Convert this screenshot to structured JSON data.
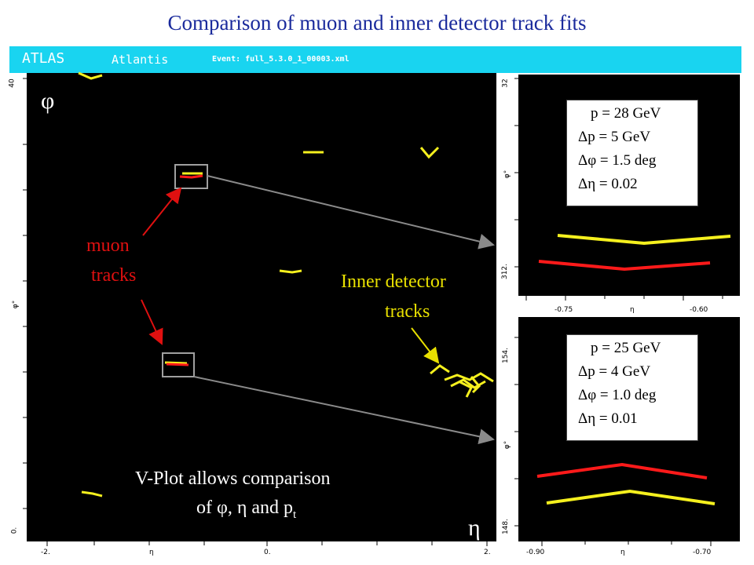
{
  "slide": {
    "title": "Comparison of muon and inner detector track fits"
  },
  "atlantis": {
    "brand": "ATLAS",
    "app": "Atlantis",
    "event": "Event: full_5.3.0_1_00003.xml"
  },
  "main_view": {
    "y_tick_top": "40",
    "y_tick_bottom": "0.",
    "y_axis_label": "φ°",
    "x_ticks": [
      "-2.",
      "η",
      "0.",
      "2."
    ],
    "phi_symbol": "φ",
    "eta_symbol": "η"
  },
  "annotations": {
    "muon_line1": "muon",
    "muon_line2": "tracks",
    "inner_line1": "Inner detector",
    "inner_line2": "tracks",
    "vplot_line1": "V-Plot allows comparison",
    "vplot_line2_prefix": "of  φ, η and p",
    "vplot_line2_sub": "t"
  },
  "zoom_top": {
    "y_tick_top": "32",
    "y_tick_bottom": "312.",
    "y_axis_label": "φ°",
    "x_ticks": [
      "-0.75",
      "η",
      "-0.60"
    ],
    "info": [
      "p = 28 GeV",
      "Δp = 5 GeV",
      "Δφ = 1.5 deg",
      "Δη = 0.02"
    ]
  },
  "zoom_bottom": {
    "y_tick_top": "154.",
    "y_tick_bottom": "148.",
    "y_axis_label": "φ°",
    "x_ticks": [
      "-0.90",
      "η",
      "-0.70"
    ],
    "info": [
      "p = 25 GeV",
      "Δp = 4 GeV",
      "Δφ = 1.0 deg",
      "Δη = 0.01"
    ]
  },
  "colors": {
    "title": "#1a2a9c",
    "header_bg": "#19d4f0",
    "muon_track": "#ff1a1a",
    "inner_track": "#f5f01e",
    "annotation_red": "#e01010",
    "annotation_yellow": "#e8e000",
    "arrow_gray": "#8a8a8a"
  }
}
